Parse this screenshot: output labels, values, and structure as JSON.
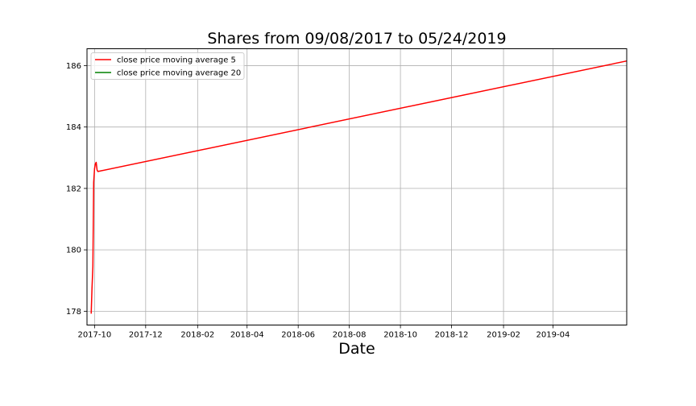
{
  "chart_data": {
    "type": "line",
    "title": "Shares from 09/08/2017 to 05/24/2019",
    "xlabel": "Date",
    "ylabel": "",
    "xlim": [
      "2017-09-22",
      "2019-06-28"
    ],
    "ylim": [
      177.55,
      186.55
    ],
    "grid": true,
    "legend_position": "top-left",
    "x_ticks": [
      "2017-10-01",
      "2017-12-01",
      "2018-02-01",
      "2018-04-01",
      "2018-06-01",
      "2018-08-01",
      "2018-10-01",
      "2018-12-01",
      "2019-02-01",
      "2019-04-01"
    ],
    "x_tick_labels": [
      "2017-10",
      "2017-12",
      "2018-02",
      "2018-04",
      "2018-06",
      "2018-08",
      "2018-10",
      "2018-12",
      "2019-02",
      "2019-04"
    ],
    "y_ticks": [
      178,
      180,
      182,
      184,
      186
    ],
    "y_tick_labels": [
      "178",
      "180",
      "182",
      "184",
      "186"
    ],
    "series": [
      {
        "name": "close price moving average 5",
        "color": "#ff0000",
        "x": [
          "2017-09-27",
          "2017-09-28",
          "2017-09-29",
          "2017-09-30",
          "2017-10-01",
          "2017-10-02",
          "2017-10-03",
          "2017-10-04",
          "2017-10-05",
          "2019-06-28"
        ],
        "y": [
          177.92,
          178.75,
          179.45,
          182.2,
          182.65,
          182.8,
          182.85,
          182.6,
          182.55,
          186.15
        ]
      },
      {
        "name": "close price moving average 20",
        "color": "#008000",
        "x": [],
        "y": []
      }
    ]
  }
}
